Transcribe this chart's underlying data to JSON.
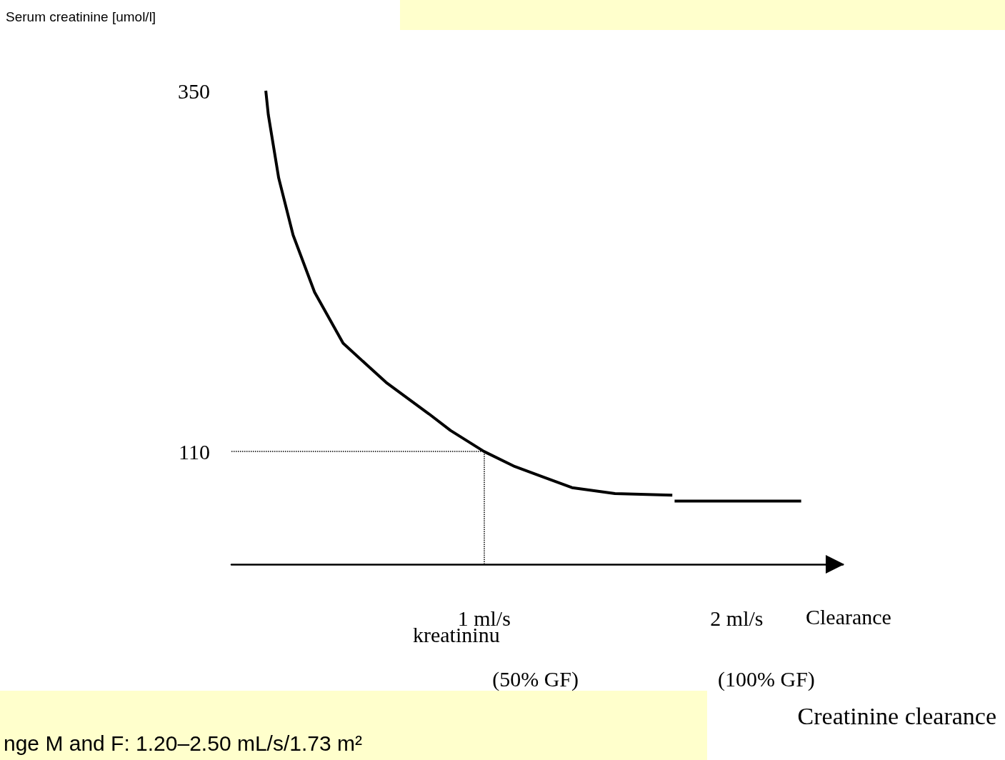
{
  "chart_data": {
    "type": "line",
    "ylabel": "Serum creatinine [umol/l]",
    "xlabel": "Clearance",
    "annotations": [
      "kreatininu",
      "(50% GF)",
      "(100% GF)",
      "nge M and F: 1.20–2.50 mL/s/1.73 m²",
      "Creatinine clearance"
    ],
    "series": [
      {
        "color": "#000000",
        "x": [
          0.136,
          0.146,
          0.187,
          0.244,
          0.329,
          0.442,
          0.612,
          0.782,
          0.867,
          1.0,
          1.122,
          1.348,
          1.518,
          1.745
        ],
        "values": [
          350,
          334,
          292,
          254,
          216,
          182,
          156,
          135,
          124,
          110,
          100,
          86,
          82,
          81
        ]
      },
      {
        "color": "#000000",
        "x": [
          1.754,
          2.255
        ],
        "values": [
          77,
          77
        ]
      }
    ],
    "xlim": [
      0,
      2.42
    ],
    "ylim": [
      35,
      350
    ],
    "xticks": [
      {
        "value": 1,
        "label": "1 ml/s"
      },
      {
        "value": 2,
        "label": "2 ml/s"
      }
    ],
    "yticks": [
      110,
      350
    ],
    "ref_lines": [
      {
        "axis": "y",
        "value": 110,
        "line_style": "dotted",
        "color": "#000000"
      },
      {
        "axis": "x",
        "value": 1,
        "line_style": "dotted",
        "color": "#000000"
      }
    ],
    "marker": "none",
    "line_style": "solid",
    "grid": false
  }
}
